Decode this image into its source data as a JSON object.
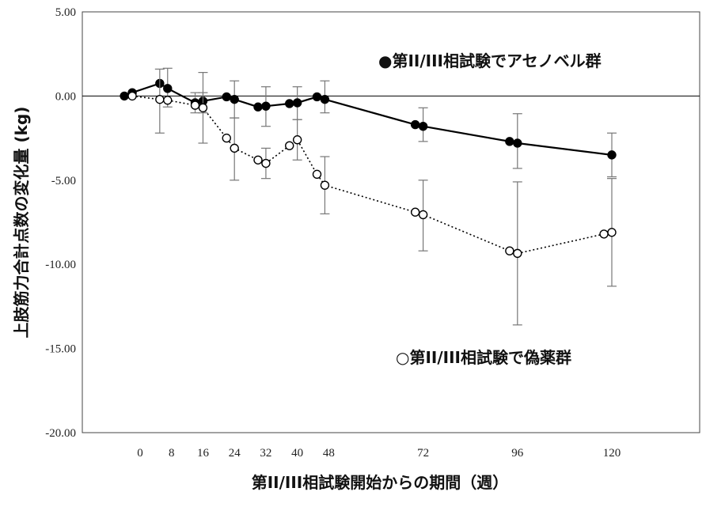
{
  "chart_data": {
    "type": "line",
    "xlabel": "第II/III相試験開始からの期間（週）",
    "ylabel": "上肢筋力合計点数の変化量 (kg)",
    "ylim": [
      -20,
      5
    ],
    "yticks": [
      "5.00",
      "0.00",
      "-5.00",
      "-10.00",
      "-15.00",
      "-20.00"
    ],
    "ytick_values": [
      5,
      0,
      -5,
      -10,
      -15,
      -20
    ],
    "xticks": [
      "0",
      "8",
      "16",
      "24",
      "32",
      "40",
      "48",
      "72",
      "96",
      "120"
    ],
    "xtick_values": [
      0,
      8,
      16,
      24,
      32,
      40,
      48,
      72,
      96,
      120
    ],
    "xlim": [
      -5,
      128
    ],
    "series": [
      {
        "name": "●第II/III相試験でアセノベル群",
        "marker": "filled-circle",
        "line_style": "solid",
        "color": "#000000",
        "points": [
          {
            "x": -4,
            "y": 0.0
          },
          {
            "x": -2,
            "y": 0.2
          },
          {
            "x": 5,
            "y": 0.75
          },
          {
            "x": 7,
            "y": 0.45,
            "err_low": -0.65,
            "err_high": 1.65
          },
          {
            "x": 14,
            "y": -0.4,
            "err_low": -1.0,
            "err_high": 0.2
          },
          {
            "x": 16,
            "y": -0.3,
            "err_low": -1.0,
            "err_high": 0.2
          },
          {
            "x": 22,
            "y": -0.05
          },
          {
            "x": 24,
            "y": -0.2,
            "err_low": -1.3,
            "err_high": 0.9
          },
          {
            "x": 30,
            "y": -0.65
          },
          {
            "x": 32,
            "y": -0.6,
            "err_low": -1.8,
            "err_high": 0.55
          },
          {
            "x": 38,
            "y": -0.45
          },
          {
            "x": 40,
            "y": -0.4,
            "err_low": -1.4,
            "err_high": 0.55
          },
          {
            "x": 45,
            "y": -0.05
          },
          {
            "x": 47,
            "y": -0.2,
            "err_low": -1.0,
            "err_high": 0.9
          },
          {
            "x": 70,
            "y": -1.7
          },
          {
            "x": 72,
            "y": -1.8,
            "err_low": -2.7,
            "err_high": -0.7
          },
          {
            "x": 94,
            "y": -2.7
          },
          {
            "x": 96,
            "y": -2.8,
            "err_low": -4.3,
            "err_high": -1.05
          },
          {
            "x": 120,
            "y": -3.5,
            "err_low": -4.8,
            "err_high": -2.2
          }
        ]
      },
      {
        "name": "○第II/III相試験で偽薬群",
        "marker": "open-circle",
        "line_style": "dotted",
        "color": "#000000",
        "points": [
          {
            "x": -2,
            "y": 0.0
          },
          {
            "x": 5,
            "y": -0.2,
            "err_low": -2.2,
            "err_high": 1.6
          },
          {
            "x": 7,
            "y": -0.25
          },
          {
            "x": 14,
            "y": -0.55
          },
          {
            "x": 16,
            "y": -0.7,
            "err_low": -2.8,
            "err_high": 1.4
          },
          {
            "x": 22,
            "y": -2.5
          },
          {
            "x": 24,
            "y": -3.1,
            "err_low": -5.0,
            "err_high": -1.3
          },
          {
            "x": 30,
            "y": -3.8
          },
          {
            "x": 32,
            "y": -4.0,
            "err_low": -4.9,
            "err_high": -3.1
          },
          {
            "x": 38,
            "y": -2.95
          },
          {
            "x": 40,
            "y": -2.6,
            "err_low": -3.8,
            "err_high": -1.4
          },
          {
            "x": 45,
            "y": -4.65
          },
          {
            "x": 47,
            "y": -5.3,
            "err_low": -7.0,
            "err_high": -3.6
          },
          {
            "x": 70,
            "y": -6.9
          },
          {
            "x": 72,
            "y": -7.05,
            "err_low": -9.2,
            "err_high": -5.0
          },
          {
            "x": 94,
            "y": -9.2
          },
          {
            "x": 96,
            "y": -9.35,
            "err_low": -13.6,
            "err_high": -5.1
          },
          {
            "x": 118,
            "y": -8.2
          },
          {
            "x": 120,
            "y": -8.1,
            "err_low": -11.3,
            "err_high": -4.9
          }
        ]
      }
    ],
    "legend": [
      {
        "text": "●第II/III相試験でアセノベル群"
      },
      {
        "text": "○第II/III相試験で偽薬群"
      }
    ],
    "reference_line_y": 0,
    "grid": false
  }
}
